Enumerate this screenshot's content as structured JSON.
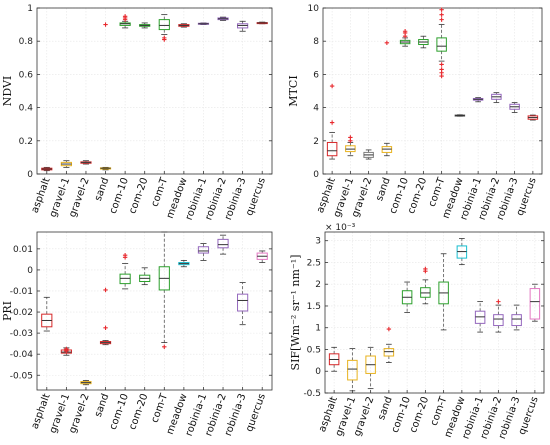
{
  "chart_data": [
    {
      "type": "box",
      "ylabel": "NDVI",
      "ylim": [
        0,
        1
      ],
      "yticks": [
        "0",
        "0.2",
        "0.4",
        "0.6",
        "0.8",
        "1"
      ],
      "yticks_values": [
        0,
        0.2,
        0.4,
        0.6,
        0.8,
        1
      ],
      "categories": [
        "asphalt",
        "gravel-1",
        "gravel-2",
        "sand",
        "com-10",
        "com-20",
        "com-T",
        "meadow",
        "robinia-1",
        "robinia-2",
        "robinia-3",
        "quercus"
      ],
      "boxes": [
        {
          "category": "asphalt",
          "wlo": 0.02,
          "q1": 0.025,
          "med": 0.03,
          "q3": 0.035,
          "whi": 0.04,
          "outliers": [],
          "color": "#d62728"
        },
        {
          "category": "gravel-1",
          "wlo": 0.04,
          "q1": 0.05,
          "med": 0.06,
          "q3": 0.07,
          "whi": 0.08,
          "outliers": [],
          "color": "#e8b21d"
        },
        {
          "category": "gravel-2",
          "wlo": 0.06,
          "q1": 0.065,
          "med": 0.07,
          "q3": 0.073,
          "whi": 0.08,
          "outliers": [],
          "color": "#d62728"
        },
        {
          "category": "sand",
          "wlo": 0.025,
          "q1": 0.03,
          "med": 0.035,
          "q3": 0.037,
          "whi": 0.04,
          "outliers": [
            0.9
          ],
          "color": "#e8b21d"
        },
        {
          "category": "com-10",
          "wlo": 0.88,
          "q1": 0.895,
          "med": 0.905,
          "q3": 0.91,
          "whi": 0.92,
          "outliers": [
            0.93,
            0.94,
            0.95
          ],
          "color": "#2ca02c"
        },
        {
          "category": "com-20",
          "wlo": 0.88,
          "q1": 0.89,
          "med": 0.895,
          "q3": 0.9,
          "whi": 0.91,
          "outliers": [],
          "color": "#2ca02c"
        },
        {
          "category": "com-T",
          "wlo": 0.84,
          "q1": 0.87,
          "med": 0.895,
          "q3": 0.93,
          "whi": 0.96,
          "outliers": [
            0.82,
            0.81
          ],
          "color": "#2ca02c"
        },
        {
          "category": "meadow",
          "wlo": 0.885,
          "q1": 0.89,
          "med": 0.895,
          "q3": 0.9,
          "whi": 0.905,
          "outliers": [],
          "color": "#d62728"
        },
        {
          "category": "robinia-1",
          "wlo": 0.9,
          "q1": 0.902,
          "med": 0.905,
          "q3": 0.908,
          "whi": 0.91,
          "outliers": [],
          "color": "#9467bd"
        },
        {
          "category": "robinia-2",
          "wlo": 0.925,
          "q1": 0.93,
          "med": 0.935,
          "q3": 0.94,
          "whi": 0.945,
          "outliers": [],
          "color": "#9467bd"
        },
        {
          "category": "robinia-3",
          "wlo": 0.86,
          "q1": 0.88,
          "med": 0.895,
          "q3": 0.905,
          "whi": 0.92,
          "outliers": [],
          "color": "#9467bd"
        },
        {
          "category": "quercus",
          "wlo": 0.905,
          "q1": 0.908,
          "med": 0.91,
          "q3": 0.912,
          "whi": 0.915,
          "outliers": [],
          "color": "#d62728"
        }
      ]
    },
    {
      "type": "box",
      "ylabel": "MTCI",
      "ylim": [
        0,
        10
      ],
      "yticks": [
        "0",
        "2",
        "4",
        "6",
        "8",
        "10"
      ],
      "yticks_values": [
        0,
        2,
        4,
        6,
        8,
        10
      ],
      "categories": [
        "asphalt",
        "gravel-1",
        "gravel-2",
        "sand",
        "com-10",
        "com-20",
        "com-T",
        "meadow",
        "robinia-1",
        "robinia-2",
        "robinia-3",
        "quercus"
      ],
      "boxes": [
        {
          "category": "asphalt",
          "wlo": 0.9,
          "q1": 1.1,
          "med": 1.4,
          "q3": 1.9,
          "whi": 2.5,
          "outliers": [
            3.1,
            5.3
          ],
          "color": "#d62728"
        },
        {
          "category": "gravel-1",
          "wlo": 1.1,
          "q1": 1.35,
          "med": 1.5,
          "q3": 1.7,
          "whi": 1.9,
          "outliers": [
            2.0,
            2.2
          ],
          "color": "#e8b21d"
        },
        {
          "category": "gravel-2",
          "wlo": 0.9,
          "q1": 1.0,
          "med": 1.15,
          "q3": 1.3,
          "whi": 1.45,
          "outliers": [],
          "color": "#7f7f7f"
        },
        {
          "category": "sand",
          "wlo": 1.1,
          "q1": 1.3,
          "med": 1.5,
          "q3": 1.65,
          "whi": 1.85,
          "outliers": [
            7.9
          ],
          "color": "#e8b21d"
        },
        {
          "category": "com-10",
          "wlo": 7.7,
          "q1": 7.85,
          "med": 7.95,
          "q3": 8.05,
          "whi": 8.2,
          "outliers": [
            8.3,
            8.5,
            8.6
          ],
          "color": "#2ca02c"
        },
        {
          "category": "com-20",
          "wlo": 7.6,
          "q1": 7.8,
          "med": 7.95,
          "q3": 8.1,
          "whi": 8.3,
          "outliers": [],
          "color": "#2ca02c"
        },
        {
          "category": "com-T",
          "wlo": 6.8,
          "q1": 7.4,
          "med": 7.7,
          "q3": 8.2,
          "whi": 9.0,
          "outliers": [
            9.3,
            9.6,
            9.9,
            6.6,
            6.3,
            6.1,
            5.9
          ],
          "color": "#2ca02c"
        },
        {
          "category": "meadow",
          "wlo": 3.48,
          "q1": 3.5,
          "med": 3.52,
          "q3": 3.55,
          "whi": 3.57,
          "outliers": [],
          "color": "#555555"
        },
        {
          "category": "robinia-1",
          "wlo": 4.35,
          "q1": 4.45,
          "med": 4.5,
          "q3": 4.55,
          "whi": 4.6,
          "outliers": [],
          "color": "#9467bd"
        },
        {
          "category": "robinia-2",
          "wlo": 4.3,
          "q1": 4.5,
          "med": 4.65,
          "q3": 4.8,
          "whi": 4.9,
          "outliers": [],
          "color": "#9467bd"
        },
        {
          "category": "robinia-3",
          "wlo": 3.7,
          "q1": 3.9,
          "med": 4.05,
          "q3": 4.2,
          "whi": 4.3,
          "outliers": [],
          "color": "#9467bd"
        },
        {
          "category": "quercus",
          "wlo": 3.25,
          "q1": 3.3,
          "med": 3.4,
          "q3": 3.5,
          "whi": 3.55,
          "outliers": [],
          "color": "#d62728"
        }
      ]
    },
    {
      "type": "box",
      "ylabel": "PRI",
      "ylim": [
        -0.057,
        0.018
      ],
      "yticks": [
        "0.01",
        "0",
        "-0.01",
        "-0.02",
        "-0.03",
        "-0.04",
        "-0.05"
      ],
      "yticks_values": [
        0.01,
        0,
        -0.01,
        -0.02,
        -0.03,
        -0.04,
        -0.05
      ],
      "categories": [
        "asphalt",
        "gravel-1",
        "gravel-2",
        "sand",
        "com-10",
        "com-20",
        "com-T",
        "meadow",
        "robinia-1",
        "robinia-2",
        "robinia-3",
        "quercus"
      ],
      "boxes": [
        {
          "category": "asphalt",
          "wlo": -0.029,
          "q1": -0.027,
          "med": -0.024,
          "q3": -0.021,
          "whi": -0.013,
          "outliers": [],
          "color": "#d62728"
        },
        {
          "category": "gravel-1",
          "wlo": -0.0405,
          "q1": -0.0395,
          "med": -0.039,
          "q3": -0.038,
          "whi": -0.037,
          "outliers": [
            -0.0375,
            -0.0385
          ],
          "color": "#d62728"
        },
        {
          "category": "gravel-2",
          "wlo": -0.0545,
          "q1": -0.054,
          "med": -0.0535,
          "q3": -0.053,
          "whi": -0.0525,
          "outliers": [],
          "color": "#e8b21d"
        },
        {
          "category": "sand",
          "wlo": -0.0355,
          "q1": -0.035,
          "med": -0.0345,
          "q3": -0.034,
          "whi": -0.0335,
          "outliers": [
            -0.0095,
            -0.0275
          ],
          "color": "#d62728"
        },
        {
          "category": "com-10",
          "wlo": -0.009,
          "q1": -0.0065,
          "med": -0.004,
          "q3": -0.002,
          "whi": 0.003,
          "outliers": [
            0.006,
            0.007
          ],
          "color": "#2ca02c"
        },
        {
          "category": "com-20",
          "wlo": -0.007,
          "q1": -0.0055,
          "med": -0.004,
          "q3": -0.0025,
          "whi": 0.001,
          "outliers": [],
          "color": "#2ca02c"
        },
        {
          "category": "com-T",
          "wlo": -0.0345,
          "q1": -0.0095,
          "med": -0.004,
          "q3": 0.0015,
          "whi": 0.018,
          "outliers": [
            -0.0365
          ],
          "color": "#2ca02c"
        },
        {
          "category": "meadow",
          "wlo": 0.0015,
          "q1": 0.0025,
          "med": 0.003,
          "q3": 0.0035,
          "whi": 0.0045,
          "outliers": [],
          "color": "#17becf"
        },
        {
          "category": "robinia-1",
          "wlo": 0.0045,
          "q1": 0.008,
          "med": 0.009,
          "q3": 0.011,
          "whi": 0.0125,
          "outliers": [],
          "color": "#9467bd"
        },
        {
          "category": "robinia-2",
          "wlo": 0.0075,
          "q1": 0.0105,
          "med": 0.012,
          "q3": 0.0145,
          "whi": 0.0165,
          "outliers": [],
          "color": "#9467bd"
        },
        {
          "category": "robinia-3",
          "wlo": -0.026,
          "q1": -0.0195,
          "med": -0.0145,
          "q3": -0.0115,
          "whi": -0.006,
          "outliers": [],
          "color": "#9467bd"
        },
        {
          "category": "quercus",
          "wlo": 0.0035,
          "q1": 0.005,
          "med": 0.0065,
          "q3": 0.008,
          "whi": 0.009,
          "outliers": [],
          "color": "#e377c2"
        }
      ]
    },
    {
      "type": "box",
      "ylabel": "SIF[Wm⁻² sr⁻¹ nm⁻¹]",
      "exponent_label": "× 10⁻³",
      "ylim": [
        -0.5,
        3.2
      ],
      "yticks": [
        "-0.5",
        "0",
        "0.5",
        "1",
        "1.5",
        "2",
        "2.5",
        "3"
      ],
      "yticks_values": [
        -0.5,
        0,
        0.5,
        1,
        1.5,
        2,
        2.5,
        3
      ],
      "categories": [
        "asphalt",
        "gravel-1",
        "gravel-2",
        "sand",
        "com-10",
        "com-20",
        "com-T",
        "meadow",
        "robinia-1",
        "robinia-2",
        "robinia-3",
        "quercus"
      ],
      "boxes": [
        {
          "category": "asphalt",
          "wlo": 0.0,
          "q1": 0.15,
          "med": 0.27,
          "q3": 0.4,
          "whi": 0.55,
          "outliers": [],
          "color": "#d62728"
        },
        {
          "category": "gravel-1",
          "wlo": -0.45,
          "q1": -0.2,
          "med": 0.05,
          "q3": 0.25,
          "whi": 0.52,
          "outliers": [],
          "color": "#e8b21d"
        },
        {
          "category": "gravel-2",
          "wlo": -0.4,
          "q1": -0.05,
          "med": 0.15,
          "q3": 0.35,
          "whi": 0.55,
          "outliers": [],
          "color": "#e8b21d"
        },
        {
          "category": "sand",
          "wlo": 0.2,
          "q1": 0.35,
          "med": 0.45,
          "q3": 0.52,
          "whi": 0.62,
          "outliers": [
            0.97
          ],
          "color": "#e8b21d"
        },
        {
          "category": "com-10",
          "wlo": 1.35,
          "q1": 1.55,
          "med": 1.7,
          "q3": 1.85,
          "whi": 2.05,
          "outliers": [],
          "color": "#2ca02c"
        },
        {
          "category": "com-20",
          "wlo": 1.55,
          "q1": 1.7,
          "med": 1.8,
          "q3": 1.92,
          "whi": 2.1,
          "outliers": [
            2.3,
            2.35
          ],
          "color": "#2ca02c"
        },
        {
          "category": "com-T",
          "wlo": 0.95,
          "q1": 1.55,
          "med": 1.8,
          "q3": 2.05,
          "whi": 2.7,
          "outliers": [],
          "color": "#2ca02c"
        },
        {
          "category": "meadow",
          "wlo": 2.45,
          "q1": 2.6,
          "med": 2.75,
          "q3": 2.88,
          "whi": 3.05,
          "outliers": [],
          "color": "#17becf"
        },
        {
          "category": "robinia-1",
          "wlo": 0.9,
          "q1": 1.1,
          "med": 1.25,
          "q3": 1.38,
          "whi": 1.6,
          "outliers": [],
          "color": "#9467bd"
        },
        {
          "category": "robinia-2",
          "wlo": 0.9,
          "q1": 1.05,
          "med": 1.2,
          "q3": 1.3,
          "whi": 1.52,
          "outliers": [
            1.6
          ],
          "color": "#9467bd"
        },
        {
          "category": "robinia-3",
          "wlo": 0.95,
          "q1": 1.05,
          "med": 1.2,
          "q3": 1.3,
          "whi": 1.52,
          "outliers": [],
          "color": "#9467bd"
        },
        {
          "category": "quercus",
          "wlo": 1.15,
          "q1": 1.2,
          "med": 1.6,
          "q3": 1.9,
          "whi": 2.0,
          "outliers": [],
          "color": "#e377c2"
        }
      ]
    }
  ]
}
